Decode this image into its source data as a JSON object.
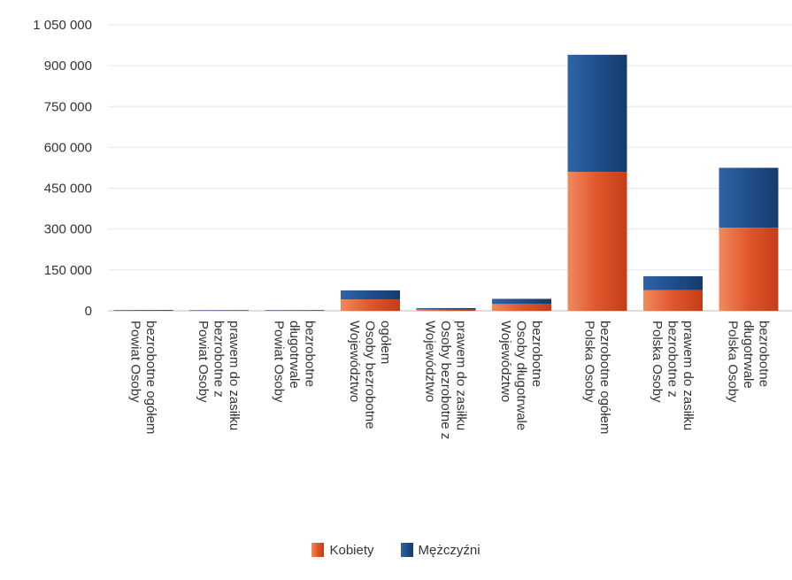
{
  "chart_data": {
    "type": "bar",
    "stacked": true,
    "categories": [
      [
        "Powiat Osoby",
        "bezrobotne ogółem"
      ],
      [
        "Powiat Osoby",
        "bezrobotne z",
        "prawem do zasiłku"
      ],
      [
        "Powiat Osoby",
        "długotrwale",
        "bezrobotne"
      ],
      [
        "Województwo",
        "Osoby bezrobotne",
        "ogółem"
      ],
      [
        "Województwo",
        "Osoby bezrobotne z",
        "prawem do zasiłku"
      ],
      [
        "Województwo",
        "Osoby długotrwale",
        "bezrobotne"
      ],
      [
        "Polska Osoby",
        "bezrobotne ogółem"
      ],
      [
        "Polska Osoby",
        "bezrobotne z",
        "prawem do zasiłku"
      ],
      [
        "Polska Osoby",
        "długotrwale",
        "bezrobotne"
      ]
    ],
    "series": [
      {
        "name": "Kobiety",
        "color": "#E0562C",
        "values": [
          1100,
          300,
          600,
          42000,
          5000,
          25000,
          510000,
          76000,
          305000
        ]
      },
      {
        "name": "Mężczyźni",
        "color": "#1F4E8C",
        "values": [
          900,
          300,
          500,
          33000,
          5000,
          19000,
          430000,
          51000,
          220000
        ]
      }
    ],
    "y_ticks": [
      {
        "value": 0,
        "label": "0"
      },
      {
        "value": 150000,
        "label": "150 000"
      },
      {
        "value": 300000,
        "label": "300 000"
      },
      {
        "value": 450000,
        "label": "450 000"
      },
      {
        "value": 600000,
        "label": "600 000"
      },
      {
        "value": 750000,
        "label": "750 000"
      },
      {
        "value": 900000,
        "label": "900 000"
      },
      {
        "value": 1050000,
        "label": "1 050 000"
      }
    ],
    "ylim": [
      0,
      1050000
    ],
    "grid": true,
    "legend_position": "bottom"
  }
}
